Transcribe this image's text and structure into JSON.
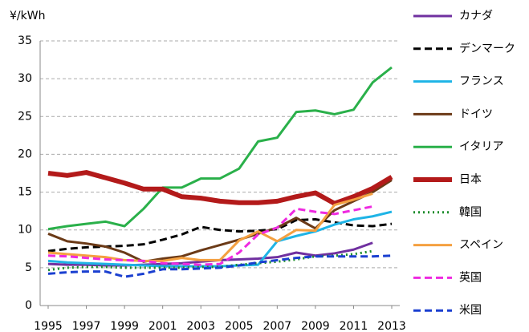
{
  "chart_data": {
    "type": "line",
    "y_label": "¥/kWh",
    "x": [
      1995,
      1996,
      1997,
      1998,
      1999,
      2000,
      2001,
      2002,
      2003,
      2004,
      2005,
      2006,
      2007,
      2008,
      2009,
      2010,
      2011,
      2012,
      2013
    ],
    "xlim": [
      1995,
      2013
    ],
    "xticks": [
      1995,
      1997,
      1999,
      2001,
      2003,
      2005,
      2007,
      2009,
      2011,
      2013
    ],
    "ylim": [
      0,
      35
    ],
    "yticks": [
      0,
      5,
      10,
      15,
      20,
      25,
      30,
      35
    ],
    "grid": true,
    "legend": "right",
    "series": [
      {
        "name": "カナダ",
        "color": "#7030a0",
        "style": "solid",
        "width": 3,
        "values": [
          5.5,
          5.4,
          5.4,
          5.3,
          5.3,
          5.4,
          5.5,
          5.6,
          5.8,
          6.0,
          6.1,
          6.2,
          6.4,
          7.0,
          6.6,
          6.9,
          7.4,
          8.3,
          null
        ]
      },
      {
        "name": "デンマーク",
        "color": "#000000",
        "style": "dashed",
        "width": 3,
        "values": [
          7.2,
          7.5,
          7.7,
          7.8,
          7.9,
          8.1,
          8.7,
          9.4,
          10.4,
          10.0,
          9.8,
          9.9,
          10.1,
          11.3,
          11.4,
          11.0,
          10.6,
          10.5,
          10.8
        ]
      },
      {
        "name": "フランス",
        "color": "#1fb4e6",
        "style": "solid",
        "width": 3,
        "values": [
          5.9,
          5.7,
          5.6,
          5.5,
          5.4,
          5.3,
          5.2,
          5.2,
          5.2,
          5.2,
          5.3,
          5.4,
          8.5,
          9.2,
          9.8,
          10.7,
          11.4,
          11.8,
          12.4
        ]
      },
      {
        "name": "ドイツ",
        "color": "#6b3a17",
        "style": "solid",
        "width": 3,
        "values": [
          9.5,
          8.5,
          8.2,
          7.8,
          7.0,
          5.8,
          6.2,
          6.5,
          7.3,
          8.0,
          8.7,
          9.5,
          10.3,
          11.6,
          10.2,
          12.6,
          13.8,
          15.0,
          16.6
        ]
      },
      {
        "name": "イタリア",
        "color": "#2ab04a",
        "style": "solid",
        "width": 3,
        "values": [
          10.1,
          10.5,
          10.8,
          11.1,
          10.5,
          12.8,
          15.6,
          15.6,
          16.8,
          16.8,
          18.1,
          21.7,
          22.2,
          25.6,
          25.8,
          25.3,
          25.9,
          29.5,
          31.5
        ]
      },
      {
        "name": "日本",
        "color": "#b31a1a",
        "style": "solid",
        "width": 6,
        "values": [
          17.5,
          17.2,
          17.6,
          16.9,
          16.2,
          15.4,
          15.4,
          14.4,
          14.2,
          13.8,
          13.6,
          13.6,
          13.8,
          14.4,
          14.9,
          13.5,
          14.4,
          15.5,
          17.0
        ]
      },
      {
        "name": "韓国",
        "color": "#1a8c2a",
        "style": "dotted",
        "width": 3,
        "values": [
          4.7,
          5.0,
          5.1,
          5.1,
          5.0,
          5.0,
          5.0,
          5.0,
          5.1,
          5.1,
          5.4,
          5.6,
          5.8,
          6.1,
          6.5,
          6.6,
          6.8,
          7.2,
          null
        ]
      },
      {
        "name": "スペイン",
        "color": "#f4a040",
        "style": "solid",
        "width": 3,
        "values": [
          7.0,
          6.8,
          6.6,
          6.4,
          6.0,
          5.9,
          5.9,
          6.3,
          6.0,
          6.0,
          8.6,
          9.8,
          8.5,
          10.0,
          9.9,
          13.3,
          14.0,
          14.8,
          null
        ]
      },
      {
        "name": "英国",
        "color": "#ee2ae0",
        "style": "dashed",
        "width": 3,
        "values": [
          6.6,
          6.5,
          6.3,
          6.1,
          6.0,
          5.9,
          5.6,
          5.5,
          5.4,
          5.5,
          7.0,
          9.4,
          10.3,
          12.8,
          12.4,
          12.1,
          12.6,
          13.1,
          null
        ]
      },
      {
        "name": "米国",
        "color": "#1a3fd0",
        "style": "dashed",
        "width": 3,
        "values": [
          4.2,
          4.4,
          4.5,
          4.5,
          3.8,
          4.2,
          4.8,
          4.8,
          4.9,
          5.0,
          5.3,
          5.7,
          6.0,
          6.3,
          6.5,
          6.5,
          6.5,
          6.5,
          6.6
        ]
      }
    ]
  }
}
